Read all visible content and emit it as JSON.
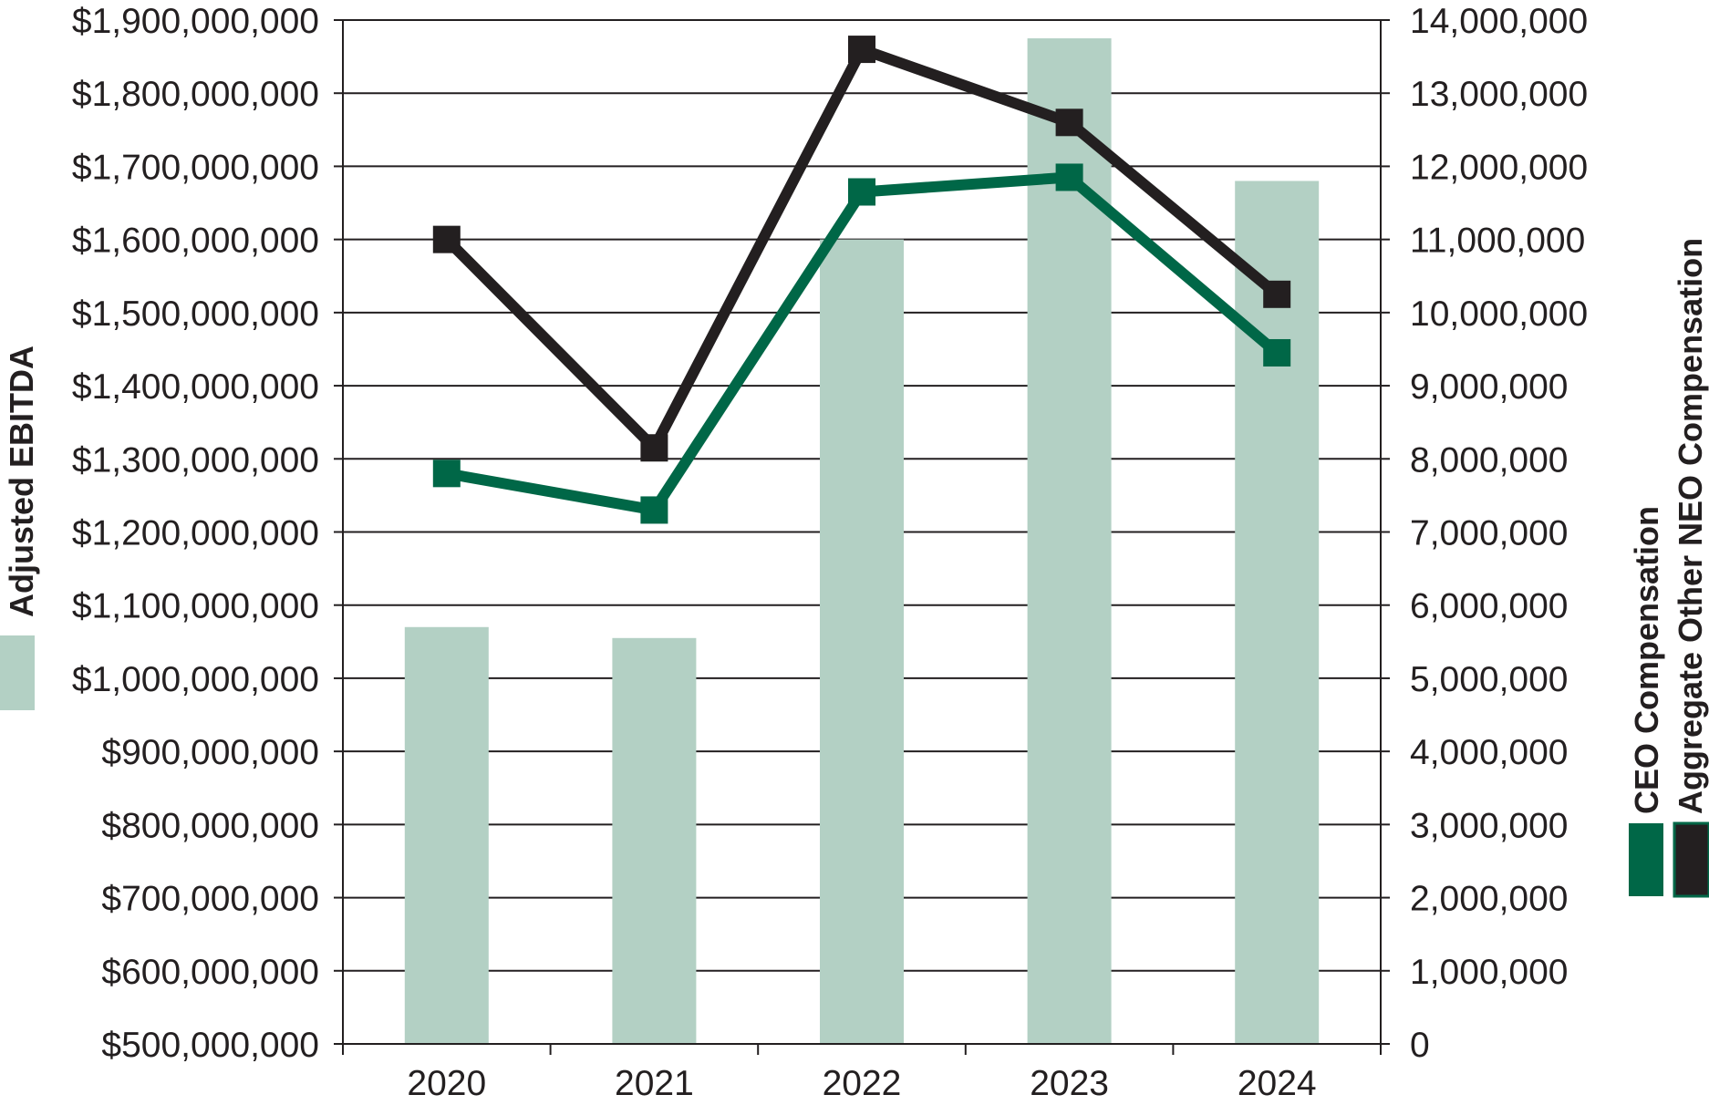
{
  "chart_data": {
    "type": "bar",
    "categories": [
      "2020",
      "2021",
      "2022",
      "2023",
      "2024"
    ],
    "bar_series": {
      "name": "Adjusted EBITDA",
      "axis": "left",
      "values": [
        1070000000,
        1055000000,
        1600000000,
        1875000000,
        1680000000
      ],
      "color": "#b3d0c4"
    },
    "line_series": [
      {
        "name": "CEO Compensation",
        "axis": "right",
        "values": [
          7800000,
          7300000,
          11650000,
          11850000,
          9450000
        ],
        "color": "#006747"
      },
      {
        "name": "Aggregate Other NEO Compensation",
        "axis": "right",
        "values": [
          11000000,
          8150000,
          13600000,
          12600000,
          10250000
        ],
        "color": "#231f20"
      }
    ],
    "left_axis": {
      "ylim": [
        500000000,
        1900000000
      ],
      "ticks": [
        500000000,
        600000000,
        700000000,
        800000000,
        900000000,
        1000000000,
        1100000000,
        1200000000,
        1300000000,
        1400000000,
        1500000000,
        1600000000,
        1700000000,
        1800000000,
        1900000000
      ],
      "tick_labels": [
        "$500,000,000",
        "$600,000,000",
        "$700,000,000",
        "$800,000,000",
        "$900,000,000",
        "$1,000,000,000",
        "$1,100,000,000",
        "$1,200,000,000",
        "$1,300,000,000",
        "$1,400,000,000",
        "$1,500,000,000",
        "$1,600,000,000",
        "$1,700,000,000",
        "$1,800,000,000",
        "$1,900,000,000"
      ]
    },
    "right_axis": {
      "ylim": [
        0,
        14000000
      ],
      "ticks": [
        0,
        1000000,
        2000000,
        3000000,
        4000000,
        5000000,
        6000000,
        7000000,
        8000000,
        9000000,
        10000000,
        11000000,
        12000000,
        13000000,
        14000000
      ],
      "tick_labels": [
        "0",
        "1,000,000",
        "2,000,000",
        "3,000,000",
        "4,000,000",
        "5,000,000",
        "6,000,000",
        "7,000,000",
        "8,000,000",
        "9,000,000",
        "10,000,000",
        "11,000,000",
        "12,000,000",
        "13,000,000",
        "14,000,000"
      ]
    },
    "grid": true,
    "legend": {
      "left": [
        {
          "label": "Adjusted EBITDA",
          "color": "#b3d0c4"
        }
      ],
      "right": [
        {
          "label": "CEO Compensation",
          "color": "#006747"
        },
        {
          "label": "Aggregate Other NEO Compensation",
          "color": "#231f20"
        }
      ]
    }
  }
}
